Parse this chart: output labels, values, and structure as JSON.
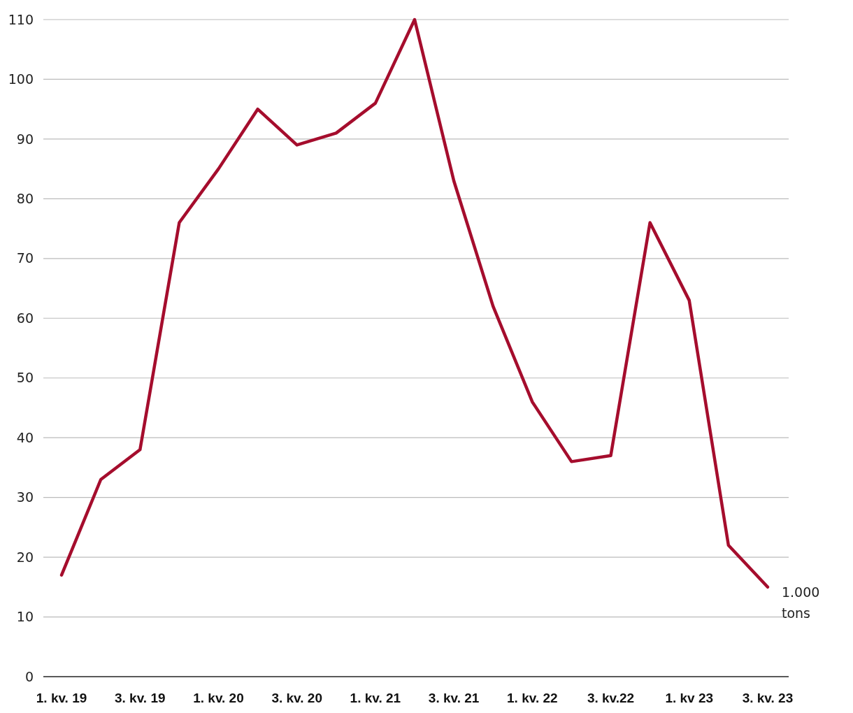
{
  "chart_data": {
    "type": "line",
    "categories": [
      "1. kv. 19",
      null,
      "3. kv. 19",
      null,
      "1. kv. 20",
      null,
      "3. kv. 20",
      null,
      "1. kv. 21",
      null,
      "3. kv. 21",
      null,
      "1. kv. 22",
      null,
      "3. kv.22",
      null,
      "1. kv 23",
      null,
      "3. kv. 23"
    ],
    "series": [
      {
        "color": "#a50d2d",
        "values": [
          17,
          33,
          38,
          76,
          85,
          95,
          89,
          91,
          96,
          110,
          83,
          62,
          46,
          36,
          37,
          76,
          63,
          22,
          15
        ]
      }
    ],
    "ylim": [
      0,
      110
    ],
    "yticks": [
      0,
      10,
      20,
      30,
      40,
      50,
      60,
      70,
      80,
      90,
      100,
      110
    ],
    "grid": "y",
    "marker": "none",
    "line_style": "solid",
    "annotations": [
      "1.000 tons"
    ]
  }
}
